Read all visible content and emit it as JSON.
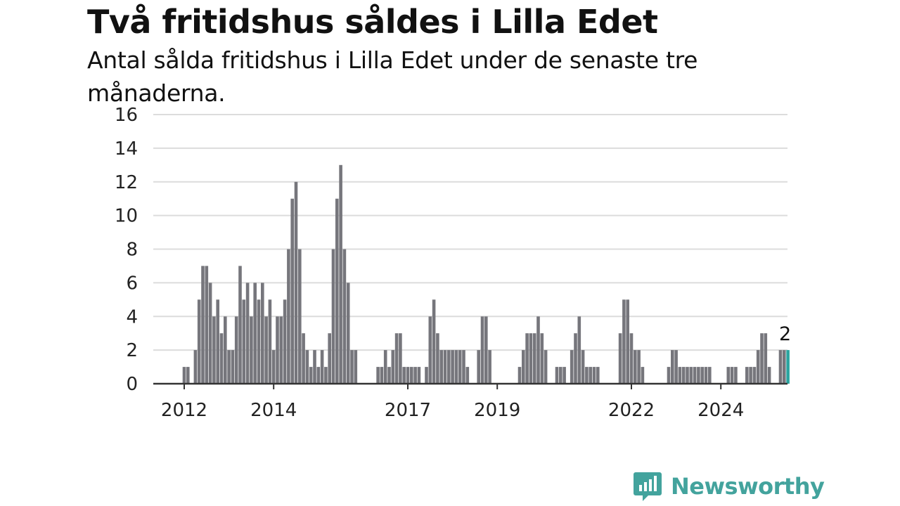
{
  "chart_data": {
    "type": "bar",
    "title": "Två fritidshus såldes i Lilla Edet",
    "subtitle": "Antal sålda fritidshus i Lilla Edet under de senaste tre månaderna.",
    "xlabel": "",
    "ylabel": "",
    "ylim": [
      0,
      16
    ],
    "yticks": [
      0,
      2,
      4,
      6,
      8,
      10,
      12,
      14,
      16
    ],
    "xticks": [
      "2012",
      "2014",
      "2017",
      "2019",
      "2022",
      "2024"
    ],
    "grid": true,
    "x_start": "2012-01",
    "interval": "month",
    "values": [
      1,
      1,
      0,
      2,
      5,
      7,
      7,
      6,
      4,
      5,
      3,
      4,
      2,
      2,
      4,
      7,
      5,
      6,
      4,
      6,
      5,
      6,
      4,
      5,
      2,
      4,
      4,
      5,
      8,
      11,
      12,
      8,
      3,
      2,
      1,
      2,
      1,
      2,
      1,
      3,
      8,
      11,
      13,
      8,
      6,
      2,
      2,
      0,
      0,
      0,
      0,
      0,
      1,
      1,
      2,
      1,
      2,
      3,
      3,
      1,
      1,
      1,
      1,
      1,
      0,
      1,
      4,
      5,
      3,
      2,
      2,
      2,
      2,
      2,
      2,
      2,
      1,
      0,
      0,
      2,
      4,
      4,
      2,
      0,
      0,
      0,
      0,
      0,
      0,
      0,
      1,
      2,
      3,
      3,
      3,
      4,
      3,
      2,
      0,
      0,
      1,
      1,
      1,
      0,
      2,
      3,
      4,
      2,
      1,
      1,
      1,
      1,
      0,
      0,
      0,
      0,
      0,
      3,
      5,
      5,
      3,
      2,
      2,
      1,
      0,
      0,
      0,
      0,
      0,
      0,
      1,
      2,
      2,
      1,
      1,
      1,
      1,
      1,
      1,
      1,
      1,
      1,
      0,
      0,
      0,
      0,
      1,
      1,
      1,
      0,
      0,
      1,
      1,
      1,
      2,
      3,
      3,
      1,
      0,
      0,
      2,
      2,
      2
    ],
    "last_value_label": "2",
    "bar_color": "#76767c",
    "highlight_color": "#2aa5a0"
  },
  "brand": {
    "name": "Newsworthy",
    "icon": "newsworthy-bar-chart-icon",
    "color": "#43a39d"
  }
}
